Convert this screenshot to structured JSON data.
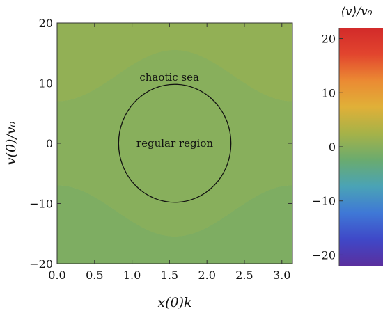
{
  "chart_data": {
    "type": "heatmap",
    "xlabel": "x(0)k",
    "ylabel": "v(0)/v₀",
    "xlim": [
      0,
      3.14159
    ],
    "ylim": [
      -20,
      20
    ],
    "x_ticks": [
      "0.0",
      "0.5",
      "1.0",
      "1.5",
      "2.0",
      "2.5",
      "3.0"
    ],
    "x_tick_values": [
      0.0,
      0.5,
      1.0,
      1.5,
      2.0,
      2.5,
      3.0
    ],
    "y_ticks": [
      "20",
      "10",
      "0",
      "−10",
      "−20"
    ],
    "y_tick_values": [
      20,
      10,
      0,
      -10,
      -20
    ],
    "separatrix": {
      "shape": "cosine",
      "x_at_peak": 1.5708,
      "upper_min": 7,
      "upper_max": 15.5,
      "lower_max": -7,
      "lower_min": -15.5
    },
    "annotations": [
      {
        "text": "chaotic sea",
        "x": 1.1,
        "y": 11
      },
      {
        "text": "regular region",
        "x": 1.5708,
        "y": 0
      }
    ],
    "regular_region": {
      "center_x": 1.5708,
      "center_y": 0,
      "radius_x": 0.75,
      "radius_y": 9.8
    },
    "chaotic_mean_value": 0,
    "colorbar": {
      "title": "⟨v⟩/v₀",
      "range": [
        -22,
        22
      ],
      "ticks": [
        "20",
        "10",
        "0",
        "−10",
        "−20"
      ],
      "tick_values": [
        20,
        10,
        0,
        -10,
        -20
      ],
      "colormap": [
        "#5a2f9e",
        "#3f48c8",
        "#3f78d6",
        "#4aa3b6",
        "#6aab6f",
        "#a6b248",
        "#e0b038",
        "#eb8a33",
        "#e2452e",
        "#d22a2a"
      ]
    }
  }
}
